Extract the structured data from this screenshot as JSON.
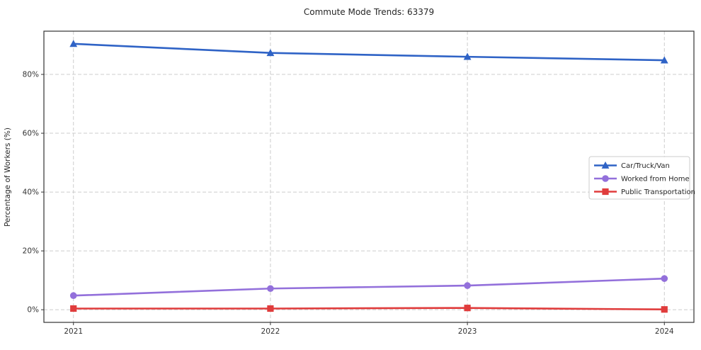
{
  "chart_data": {
    "type": "line",
    "title": "Commute Mode Trends: 63379",
    "xlabel": "",
    "ylabel": "Percentage of Workers (%)",
    "categories": [
      "2021",
      "2022",
      "2023",
      "2024"
    ],
    "x": [
      2021,
      2022,
      2023,
      2024
    ],
    "series": [
      {
        "name": "Car/Truck/Van",
        "marker": "triangle",
        "color": "#2f63c6",
        "values": [
          90.4,
          87.3,
          86.0,
          84.8
        ]
      },
      {
        "name": "Worked from Home",
        "marker": "circle",
        "color": "#9370db",
        "values": [
          4.8,
          7.2,
          8.2,
          10.6
        ]
      },
      {
        "name": "Public Transportation",
        "marker": "square",
        "color": "#e03c3c",
        "values": [
          0.4,
          0.4,
          0.6,
          0.1
        ]
      }
    ],
    "yticks": [
      0,
      20,
      40,
      60,
      80
    ],
    "ytick_labels": [
      "0%",
      "20%",
      "40%",
      "60%",
      "80%"
    ],
    "ylim": [
      -4.3,
      94.7
    ],
    "xlim": [
      2020.85,
      2024.15
    ],
    "grid": true,
    "grid_style": "dashed",
    "legend": {
      "position": "center right",
      "labels": [
        "Car/Truck/Van",
        "Worked from Home",
        "Public Transportation"
      ]
    },
    "colors": {
      "grid": "#cccccc",
      "spine": "#333333",
      "text": "#262626",
      "tick_text": "#333333",
      "background": "#ffffff"
    }
  }
}
